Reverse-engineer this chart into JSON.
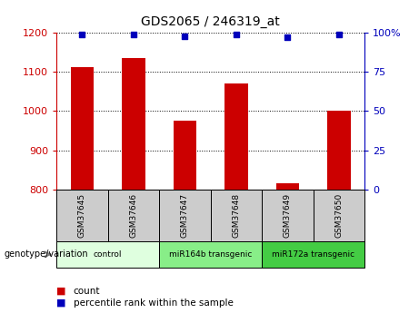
{
  "title": "GDS2065 / 246319_at",
  "samples": [
    "GSM37645",
    "GSM37646",
    "GSM37647",
    "GSM37648",
    "GSM37649",
    "GSM37650"
  ],
  "count_values": [
    1112,
    1135,
    975,
    1070,
    815,
    1000
  ],
  "percentile_values": [
    99,
    99,
    98,
    99,
    97,
    99
  ],
  "ylim_left": [
    800,
    1200
  ],
  "yticks_left": [
    800,
    900,
    1000,
    1100,
    1200
  ],
  "ylim_right": [
    0,
    100
  ],
  "yticks_right": [
    0,
    25,
    50,
    75,
    100
  ],
  "ytick_labels_right": [
    "0",
    "25",
    "50",
    "75",
    "100%"
  ],
  "bar_color": "#cc0000",
  "dot_color": "#0000bb",
  "left_axis_color": "#cc0000",
  "right_axis_color": "#0000bb",
  "grid_color": "black",
  "groups": [
    {
      "label": "control",
      "span": [
        0,
        2
      ],
      "color": "#dfffdf"
    },
    {
      "label": "miR164b transgenic",
      "span": [
        2,
        4
      ],
      "color": "#88ee88"
    },
    {
      "label": "miR172a transgenic",
      "span": [
        4,
        6
      ],
      "color": "#44cc44"
    }
  ],
  "sample_bg_color": "#cccccc",
  "legend_count_label": "count",
  "legend_percentile_label": "percentile rank within the sample",
  "genotype_label": "genotype/variation"
}
